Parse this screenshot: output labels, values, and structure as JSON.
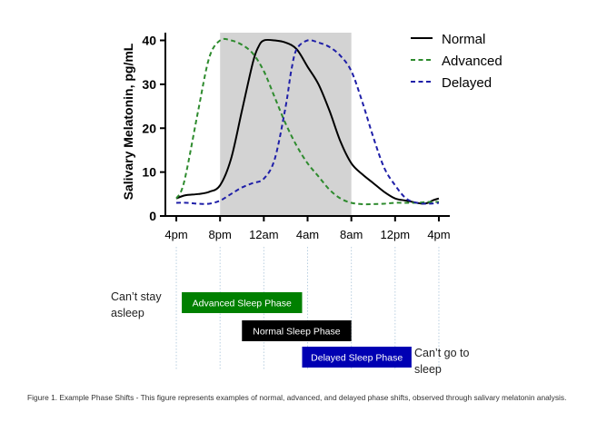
{
  "chart_data": {
    "type": "line",
    "ylabel": "Salivary Melatonin, pg/mL",
    "xlabel": "",
    "title": "",
    "ylim": [
      0,
      43
    ],
    "yticks": [
      0,
      10,
      20,
      30,
      40
    ],
    "x_tick_labels": [
      "4pm",
      "8pm",
      "12am",
      "4am",
      "8am",
      "12pm",
      "4pm"
    ],
    "x_tick_hours": [
      0,
      4,
      8,
      12,
      16,
      20,
      24
    ],
    "xlim_hours": [
      -1,
      25
    ],
    "shaded_region_hours": [
      4,
      16
    ],
    "legend_position": "top-right",
    "grid": false,
    "series": [
      {
        "name": "Normal",
        "color": "#000000",
        "dash": "solid",
        "x_hours": [
          0,
          0.8,
          2,
          3,
          4,
          5,
          6,
          7,
          7.5,
          8,
          9,
          10,
          11,
          12,
          13,
          14,
          15,
          16,
          17,
          18,
          19,
          20,
          21,
          22,
          22.5,
          23,
          23.5,
          24
        ],
        "values": [
          4,
          4.7,
          5,
          5.5,
          7,
          13,
          24,
          35,
          38.5,
          40,
          40,
          39.5,
          38,
          34,
          30,
          24,
          17,
          12,
          9.5,
          7.5,
          5.5,
          4,
          3.5,
          3,
          2.8,
          3,
          3.6,
          4
        ]
      },
      {
        "name": "Advanced",
        "color": "#2e8b2e",
        "dash": "dashed",
        "x_hours": [
          0,
          0.5,
          1,
          2,
          3,
          4,
          5,
          6,
          7,
          8,
          9,
          10,
          11,
          12,
          13,
          14,
          15,
          16,
          17,
          18,
          19,
          20,
          21,
          22,
          23,
          24
        ],
        "values": [
          4,
          6,
          11,
          24,
          36,
          40,
          40,
          39,
          37,
          33,
          27,
          21,
          16,
          12,
          9,
          6,
          4,
          3,
          2.7,
          2.7,
          2.8,
          3,
          3,
          3,
          3.2,
          3.2
        ]
      },
      {
        "name": "Delayed",
        "color": "#1f1fa8",
        "dash": "dashed",
        "x_hours": [
          0,
          1,
          2,
          3,
          4,
          5,
          6,
          7,
          8,
          9,
          10,
          10.5,
          11,
          12,
          13,
          14,
          15,
          16,
          17,
          18,
          19,
          20,
          21,
          22,
          23,
          24
        ],
        "values": [
          3,
          3,
          2.8,
          2.8,
          3.5,
          5,
          6.5,
          7.5,
          8.5,
          13,
          25,
          33,
          38,
          40,
          39.5,
          38.5,
          36.5,
          33,
          26,
          18,
          11,
          7,
          4,
          3,
          2.8,
          3
        ]
      }
    ],
    "phase_bars": [
      {
        "label": "Advanced Sleep Phase",
        "start_hour": 0.5,
        "end_hour": 11.5,
        "color": "#008000"
      },
      {
        "label": "Normal Sleep Phase",
        "start_hour": 6,
        "end_hour": 16,
        "color": "#000000"
      },
      {
        "label": "Delayed Sleep Phase",
        "start_hour": 11.5,
        "end_hour": 21.5,
        "color": "#0000b3"
      }
    ]
  },
  "annotations": {
    "cant_stay_asleep": "Can’t stay asleep",
    "cant_go_to_sleep": "Can’t go to sleep"
  },
  "caption": "Figure 1. Example Phase Shifts - This figure represents examples of normal, advanced, and delayed phase shifts, observed through salivary melatonin analysis."
}
